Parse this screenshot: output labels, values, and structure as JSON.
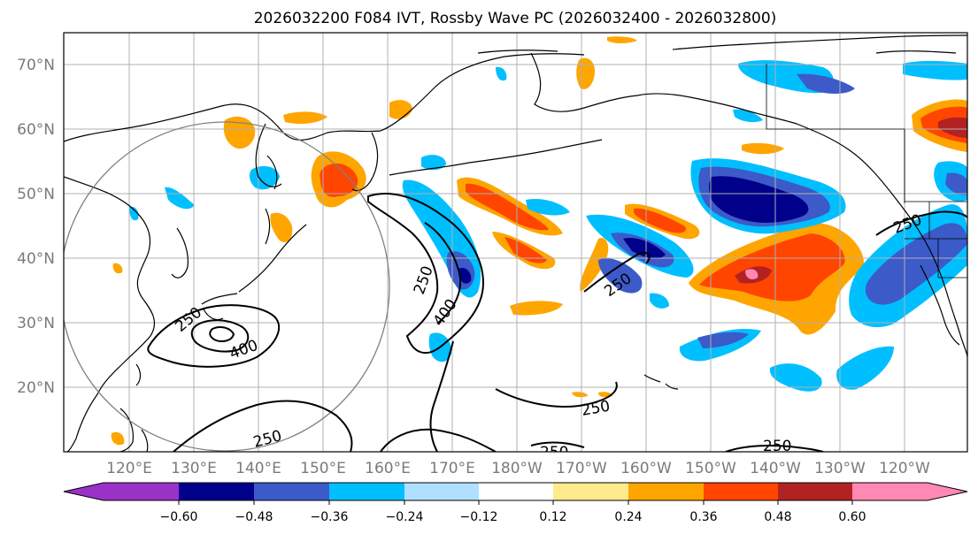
{
  "title": "2026032200 F084 IVT, Rossby Wave PC (2026032400 - 2026032800)",
  "map": {
    "lat_labels": [
      "70°N",
      "60°N",
      "50°N",
      "40°N",
      "30°N",
      "20°N"
    ],
    "lon_labels": [
      "120°E",
      "130°E",
      "140°E",
      "150°E",
      "160°E",
      "170°E",
      "180°W",
      "170°W",
      "160°W",
      "150°W",
      "140°W",
      "130°W",
      "120°W"
    ],
    "contour_labels": [
      "250",
      "400",
      "250",
      "400",
      "250",
      "250",
      "250",
      "250",
      "250",
      "250"
    ]
  },
  "colorbar": {
    "tick_labels": [
      "−0.60",
      "−0.48",
      "−0.36",
      "−0.24",
      "−0.12",
      "0.12",
      "0.24",
      "0.36",
      "0.48",
      "0.60"
    ],
    "colors": [
      "#9b32c8",
      "#00008b",
      "#3c5ac8",
      "#00bfff",
      "#b0e0ff",
      "#ffffff",
      "#ffeb8c",
      "#ffa500",
      "#ff4500",
      "#b22222",
      "#ff88b4"
    ]
  }
}
